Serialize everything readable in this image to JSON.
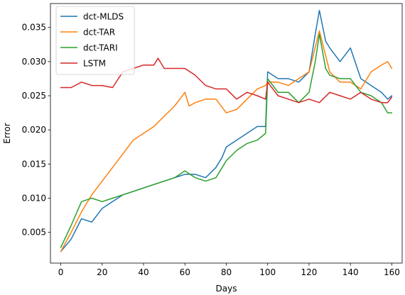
{
  "chart_data": {
    "type": "line",
    "title": "",
    "xlabel": "Days",
    "ylabel": "Error",
    "xlim": [
      -5,
      165
    ],
    "ylim": [
      0.0005,
      0.0385
    ],
    "xticks": [
      0,
      20,
      40,
      60,
      80,
      100,
      120,
      140,
      160
    ],
    "yticks": [
      0.005,
      0.01,
      0.015,
      0.02,
      0.025,
      0.03,
      0.035
    ],
    "ytick_labels": [
      "0.005",
      "0.010",
      "0.015",
      "0.020",
      "0.025",
      "0.030",
      "0.035"
    ],
    "grid": false,
    "legend_position": "top-left",
    "series": [
      {
        "name": "dct-MLDS",
        "color": "#1f77b4",
        "x": [
          0,
          5,
          10,
          15,
          20,
          25,
          30,
          35,
          40,
          45,
          50,
          55,
          60,
          65,
          70,
          75,
          78,
          80,
          85,
          90,
          95,
          99,
          100,
          105,
          110,
          115,
          120,
          123,
          125,
          128,
          130,
          135,
          140,
          145,
          150,
          155,
          158,
          160
        ],
        "y": [
          0.0022,
          0.004,
          0.007,
          0.0065,
          0.0085,
          0.0095,
          0.0105,
          0.011,
          0.0115,
          0.012,
          0.0125,
          0.013,
          0.0135,
          0.0135,
          0.013,
          0.0145,
          0.016,
          0.0175,
          0.0185,
          0.0195,
          0.0205,
          0.0205,
          0.0285,
          0.0275,
          0.0275,
          0.027,
          0.0285,
          0.034,
          0.0375,
          0.033,
          0.032,
          0.03,
          0.032,
          0.0275,
          0.0265,
          0.0255,
          0.0245,
          0.025
        ]
      },
      {
        "name": "dct-TAR",
        "color": "#ff7f0e",
        "x": [
          0,
          5,
          10,
          15,
          20,
          25,
          30,
          35,
          40,
          45,
          50,
          55,
          60,
          62,
          65,
          70,
          75,
          80,
          85,
          90,
          95,
          99,
          100,
          105,
          110,
          115,
          120,
          125,
          130,
          135,
          140,
          145,
          150,
          155,
          158,
          160
        ],
        "y": [
          0.0022,
          0.005,
          0.008,
          0.0105,
          0.0125,
          0.0145,
          0.0165,
          0.0185,
          0.0195,
          0.0205,
          0.022,
          0.0235,
          0.0255,
          0.0235,
          0.024,
          0.0245,
          0.0245,
          0.0225,
          0.023,
          0.0245,
          0.026,
          0.0265,
          0.027,
          0.027,
          0.0265,
          0.0275,
          0.0285,
          0.0345,
          0.0285,
          0.027,
          0.027,
          0.026,
          0.0285,
          0.0295,
          0.03,
          0.029
        ]
      },
      {
        "name": "dct-TARI",
        "color": "#2ca02c",
        "x": [
          0,
          5,
          10,
          15,
          20,
          25,
          30,
          35,
          40,
          45,
          50,
          55,
          60,
          65,
          70,
          75,
          78,
          80,
          85,
          90,
          95,
          99,
          100,
          105,
          110,
          115,
          120,
          123,
          125,
          128,
          130,
          135,
          140,
          145,
          150,
          155,
          158,
          160
        ],
        "y": [
          0.0028,
          0.006,
          0.0095,
          0.01,
          0.0095,
          0.01,
          0.0105,
          0.011,
          0.0115,
          0.012,
          0.0125,
          0.013,
          0.014,
          0.013,
          0.0125,
          0.013,
          0.0145,
          0.0155,
          0.017,
          0.018,
          0.0185,
          0.0195,
          0.0275,
          0.0255,
          0.0255,
          0.024,
          0.0255,
          0.03,
          0.034,
          0.029,
          0.028,
          0.0275,
          0.0275,
          0.0255,
          0.025,
          0.024,
          0.0225,
          0.0225
        ]
      },
      {
        "name": "LSTM",
        "color": "#d62728",
        "x": [
          0,
          5,
          10,
          15,
          20,
          25,
          30,
          35,
          40,
          45,
          47,
          50,
          55,
          60,
          65,
          70,
          75,
          80,
          85,
          90,
          95,
          99,
          100,
          105,
          110,
          115,
          120,
          125,
          130,
          135,
          140,
          145,
          150,
          155,
          158,
          160
        ],
        "y": [
          0.0262,
          0.0262,
          0.027,
          0.0265,
          0.0265,
          0.0262,
          0.0285,
          0.029,
          0.0295,
          0.0295,
          0.0305,
          0.029,
          0.029,
          0.029,
          0.028,
          0.0265,
          0.026,
          0.026,
          0.0245,
          0.0255,
          0.025,
          0.0245,
          0.027,
          0.025,
          0.0245,
          0.024,
          0.0245,
          0.024,
          0.0255,
          0.025,
          0.0245,
          0.0255,
          0.0245,
          0.024,
          0.024,
          0.0248
        ]
      }
    ]
  }
}
